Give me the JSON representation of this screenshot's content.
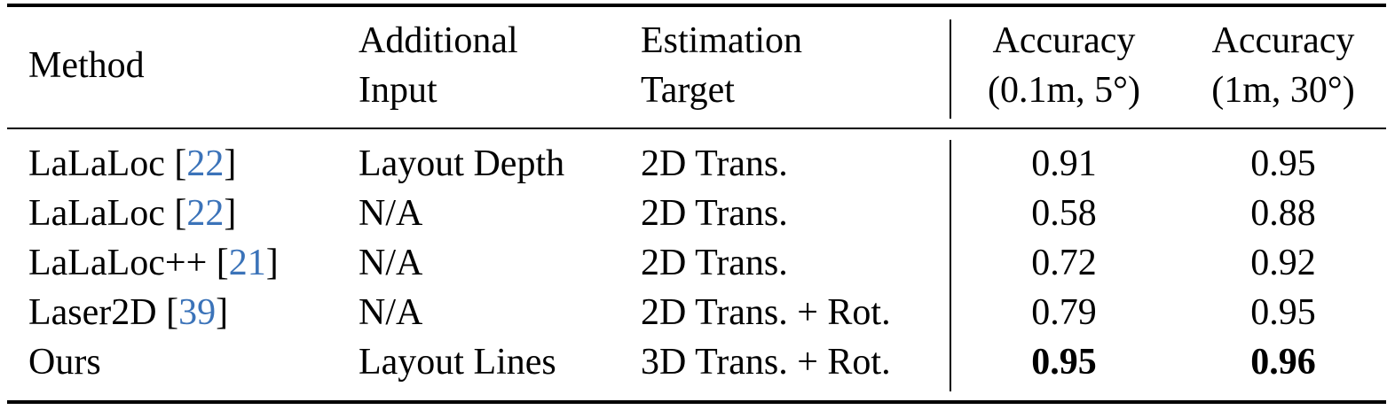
{
  "table": {
    "headers": {
      "method": "Method",
      "additional_input": [
        "Additional",
        "Input"
      ],
      "estimation_target": [
        "Estimation",
        "Target"
      ],
      "acc_fine": [
        "Accuracy",
        "(0.1m, 5°)"
      ],
      "acc_coarse": [
        "Accuracy",
        "(1m, 30°)"
      ]
    },
    "rows": [
      {
        "method": "LaLaLoc ",
        "cite": "22",
        "input": "Layout Depth",
        "target": "2D Trans.",
        "acc_fine": "0.91",
        "acc_coarse": "0.95",
        "bold": false
      },
      {
        "method": "LaLaLoc ",
        "cite": "22",
        "input": "N/A",
        "target": "2D Trans.",
        "acc_fine": "0.58",
        "acc_coarse": "0.88",
        "bold": false
      },
      {
        "method": "LaLaLoc++ ",
        "cite": "21",
        "input": "N/A",
        "target": "2D Trans.",
        "acc_fine": "0.72",
        "acc_coarse": "0.92",
        "bold": false
      },
      {
        "method": "Laser2D ",
        "cite": "39",
        "input": "N/A",
        "target": "2D Trans. + Rot.",
        "acc_fine": "0.79",
        "acc_coarse": "0.95",
        "bold": false
      },
      {
        "method": "Ours",
        "cite": "",
        "input": "Layout Lines",
        "target": "3D Trans. + Rot.",
        "acc_fine": "0.95",
        "acc_coarse": "0.96",
        "bold": true
      }
    ]
  }
}
